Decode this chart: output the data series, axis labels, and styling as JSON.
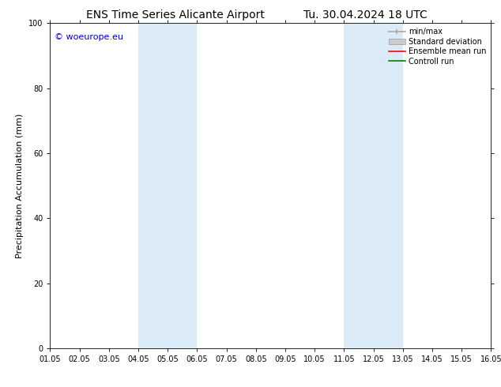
{
  "title_left": "ENS Time Series Alicante Airport",
  "title_right": "Tu. 30.04.2024 18 UTC",
  "ylabel": "Precipitation Accumulation (mm)",
  "ylim": [
    0,
    100
  ],
  "yticks": [
    0,
    20,
    40,
    60,
    80,
    100
  ],
  "x_start": 1.05,
  "x_end": 16.05,
  "xtick_labels": [
    "01.05",
    "02.05",
    "03.05",
    "04.05",
    "05.05",
    "06.05",
    "07.05",
    "08.05",
    "09.05",
    "10.05",
    "11.05",
    "12.05",
    "13.05",
    "14.05",
    "15.05",
    "16.05"
  ],
  "xtick_positions": [
    1.05,
    2.05,
    3.05,
    4.05,
    5.05,
    6.05,
    7.05,
    8.05,
    9.05,
    10.05,
    11.05,
    12.05,
    13.05,
    14.05,
    15.05,
    16.05
  ],
  "shaded_regions": [
    {
      "x_start": 4.05,
      "x_end": 6.05,
      "color": "#daeaf7"
    },
    {
      "x_start": 11.05,
      "x_end": 13.05,
      "color": "#daeaf7"
    }
  ],
  "watermark_text": "© woeurope.eu",
  "watermark_color": "#0000cc",
  "background_color": "#ffffff",
  "plot_bg_color": "#ffffff",
  "legend_entries": [
    {
      "label": "min/max",
      "color": "#aaaaaa",
      "style": "line_with_caps"
    },
    {
      "label": "Standard deviation",
      "color": "#cccccc",
      "style": "filled_box"
    },
    {
      "label": "Ensemble mean run",
      "color": "#ff0000",
      "style": "line"
    },
    {
      "label": "Controll run",
      "color": "#008000",
      "style": "line"
    }
  ],
  "title_fontsize": 10,
  "axis_label_fontsize": 8,
  "tick_fontsize": 7,
  "legend_fontsize": 7,
  "watermark_fontsize": 8
}
